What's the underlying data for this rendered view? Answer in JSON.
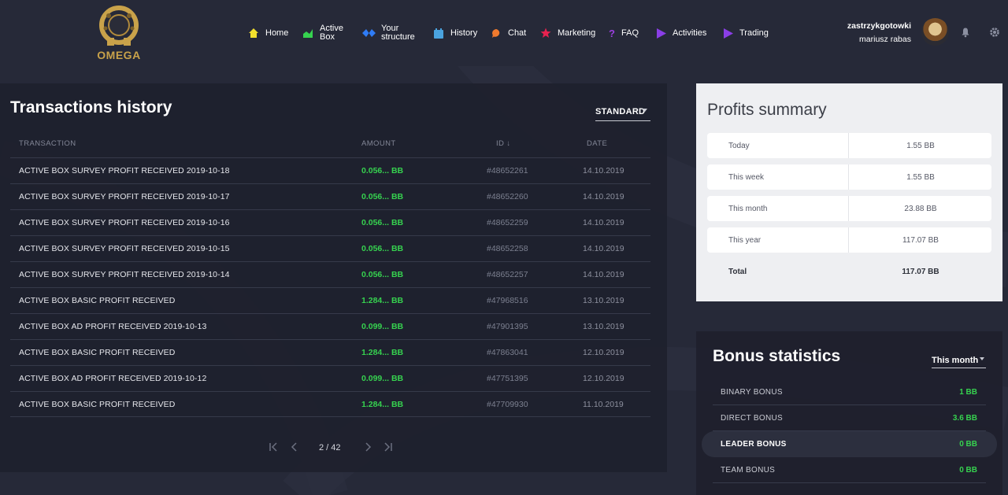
{
  "brand": {
    "name": "OMEGA",
    "accent": "#c9a24a"
  },
  "nav": [
    {
      "label": "Home",
      "icon": "home-icon",
      "color": "#f2e02d"
    },
    {
      "label": "Active\nBox",
      "icon": "chart-icon",
      "color": "#36d24f"
    },
    {
      "label": "Your\nstructure",
      "icon": "structure-icon",
      "color": "#2f7cf6"
    },
    {
      "label": "History",
      "icon": "history-icon",
      "color": "#4aa3df"
    },
    {
      "label": "Chat",
      "icon": "chat-icon",
      "color": "#f07a2e"
    },
    {
      "label": "Marketing",
      "icon": "star-icon",
      "color": "#e8224f"
    },
    {
      "label": "FAQ",
      "icon": "question-icon",
      "color": "#9b3fe0"
    },
    {
      "label": "Activities",
      "icon": "play-icon",
      "color": "#8a3ee6"
    },
    {
      "label": "Trading",
      "icon": "play-icon",
      "color": "#8a3ee6"
    }
  ],
  "user": {
    "username": "zastrzykgotowki",
    "full_name": "mariusz rabas"
  },
  "transactions": {
    "title": "Transactions history",
    "filter": "STANDARD",
    "columns": {
      "transaction": "TRANSACTION",
      "amount": "AMOUNT",
      "id": "ID ↓",
      "date": "DATE"
    },
    "rows": [
      {
        "name": "ACTIVE BOX SURVEY PROFIT RECEIVED 2019-10-18",
        "amount": "0.056... BB",
        "id": "#48652261",
        "date": "14.10.2019"
      },
      {
        "name": "ACTIVE BOX SURVEY PROFIT RECEIVED 2019-10-17",
        "amount": "0.056... BB",
        "id": "#48652260",
        "date": "14.10.2019"
      },
      {
        "name": "ACTIVE BOX SURVEY PROFIT RECEIVED 2019-10-16",
        "amount": "0.056... BB",
        "id": "#48652259",
        "date": "14.10.2019"
      },
      {
        "name": "ACTIVE BOX SURVEY PROFIT RECEIVED 2019-10-15",
        "amount": "0.056... BB",
        "id": "#48652258",
        "date": "14.10.2019"
      },
      {
        "name": "ACTIVE BOX SURVEY PROFIT RECEIVED 2019-10-14",
        "amount": "0.056... BB",
        "id": "#48652257",
        "date": "14.10.2019"
      },
      {
        "name": "ACTIVE BOX BASIC PROFIT RECEIVED",
        "amount": "1.284... BB",
        "id": "#47968516",
        "date": "13.10.2019"
      },
      {
        "name": "ACTIVE BOX AD PROFIT RECEIVED 2019-10-13",
        "amount": "0.099... BB",
        "id": "#47901395",
        "date": "13.10.2019"
      },
      {
        "name": "ACTIVE BOX BASIC PROFIT RECEIVED",
        "amount": "1.284... BB",
        "id": "#47863041",
        "date": "12.10.2019"
      },
      {
        "name": "ACTIVE BOX AD PROFIT RECEIVED 2019-10-12",
        "amount": "0.099... BB",
        "id": "#47751395",
        "date": "12.10.2019"
      },
      {
        "name": "ACTIVE BOX BASIC PROFIT RECEIVED",
        "amount": "1.284... BB",
        "id": "#47709930",
        "date": "11.10.2019"
      }
    ],
    "pagination": {
      "current": "2 / 42"
    }
  },
  "profits": {
    "title": "Profits summary",
    "rows": [
      {
        "label": "Today",
        "value": "1.55 BB"
      },
      {
        "label": "This week",
        "value": "1.55 BB"
      },
      {
        "label": "This month",
        "value": "23.88 BB"
      },
      {
        "label": "This year",
        "value": "117.07 BB"
      }
    ],
    "total": {
      "label": "Total",
      "value": "117.07 BB"
    }
  },
  "bonus": {
    "title": "Bonus statistics",
    "period": "This month",
    "rows": [
      {
        "label": "BINARY BONUS",
        "value": "1 BB",
        "highlighted": false
      },
      {
        "label": "DIRECT BONUS",
        "value": "3.6 BB",
        "highlighted": false
      },
      {
        "label": "LEADER BONUS",
        "value": "0 BB",
        "highlighted": true
      },
      {
        "label": "TEAM BONUS",
        "value": "0 BB",
        "highlighted": false
      }
    ]
  }
}
